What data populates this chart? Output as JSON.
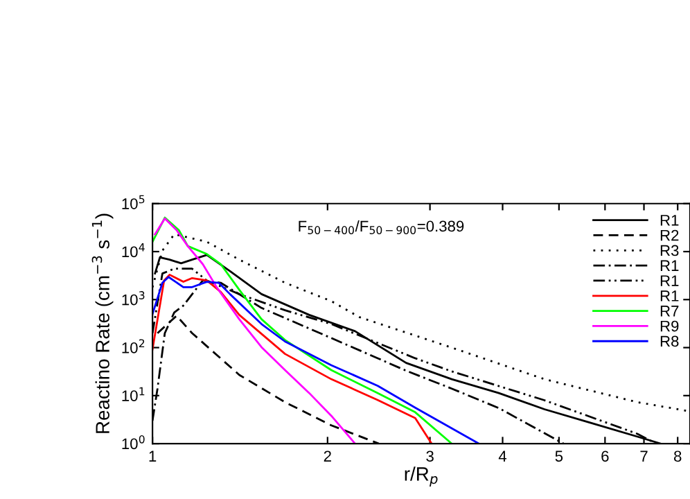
{
  "chart_data": {
    "type": "line",
    "xlabel": "r/R$_{p}$",
    "ylabel": "Reactino Rate (cm$^{−3}$ s$^{−1}$)",
    "annotations": [
      "F$_{50−400}$/F$_{50−900}$=0.389"
    ],
    "log": "xy",
    "xlim": [
      1,
      8.4
    ],
    "ylim": [
      1,
      100000
    ],
    "xticks": [
      1,
      2,
      3,
      4,
      5,
      6,
      7,
      8
    ],
    "yticks": [
      {
        "value": 1,
        "label": "10$^{0}$"
      },
      {
        "value": 10,
        "label": "10$^{1}$"
      },
      {
        "value": 100,
        "label": "10$^{2}$"
      },
      {
        "value": 1000,
        "label": "10$^{3}$"
      },
      {
        "value": 10000,
        "label": "10$^{4}$"
      },
      {
        "value": 100000,
        "label": "10$^{5}$"
      }
    ],
    "legend": "top right",
    "grid": false,
    "series": [
      {
        "name": "R1",
        "color": "#000000",
        "line_style": "solid",
        "x": [
          1.01,
          1.03,
          1.07,
          1.12,
          1.17,
          1.24,
          1.36,
          1.54,
          1.86,
          2.23,
          2.73,
          3.27,
          3.94,
          4.72,
          5.67,
          6.82,
          7.48
        ],
        "values": [
          3500,
          7600,
          6800,
          5700,
          6800,
          8500,
          3900,
          1300,
          480,
          220,
          48,
          22,
          11.3,
          5.2,
          2.7,
          1.4,
          1
        ]
      },
      {
        "name": "R2",
        "color": "#000000",
        "line_style": "dashed",
        "x": [
          1.02,
          1.1,
          1.17,
          1.41,
          1.69,
          2.03,
          2.45
        ],
        "values": [
          200,
          460,
          200,
          27,
          7.3,
          2.4,
          1
        ]
      },
      {
        "name": "R3",
        "color": "#000000",
        "line_style": "dotted",
        "x": [
          1.0,
          1.04,
          1.09,
          1.24,
          1.41,
          1.69,
          2.03,
          2.27,
          3.27,
          4.72,
          6.82,
          8.4
        ],
        "values": [
          1800,
          10500,
          23000,
          16000,
          6800,
          2240,
          930,
          430,
          100,
          22,
          7.3,
          4.7
        ]
      },
      {
        "name": "R1",
        "color": "#000000",
        "line_style": "dashdot",
        "x": [
          1.0,
          1.02,
          1.05,
          1.09,
          1.13,
          1.22,
          1.31,
          1.54,
          1.86,
          2.44,
          2.73,
          3.27,
          3.94,
          5.09
        ],
        "values": [
          3,
          14,
          200,
          540,
          750,
          2500,
          2240,
          670,
          250,
          60,
          33,
          14,
          5.5,
          1
        ]
      },
      {
        "name": "R1",
        "color": "#000000",
        "line_style": "dashdotdot",
        "x": [
          1.0,
          1.04,
          1.09,
          1.17,
          1.24,
          1.41,
          1.69,
          2.03,
          2.83,
          3.27,
          4.72,
          6.82,
          7.35
        ],
        "values": [
          200,
          3500,
          4400,
          4400,
          2500,
          1300,
          600,
          310,
          60,
          32,
          8,
          1.6,
          1
        ]
      },
      {
        "name": "R1",
        "color": "#ff0000",
        "line_style": "solid",
        "x": [
          1.0,
          1.047,
          1.07,
          1.13,
          1.17,
          1.24,
          1.31,
          1.41,
          1.69,
          2.03,
          2.44,
          2.83,
          3.02
        ],
        "values": [
          92,
          2500,
          3300,
          2350,
          2800,
          2500,
          1450,
          480,
          74,
          22,
          8.1,
          3.4,
          1
        ]
      },
      {
        "name": "R7",
        "color": "#00ff00",
        "line_style": "solid",
        "x": [
          1.0,
          1.05,
          1.11,
          1.15,
          1.24,
          1.31,
          1.41,
          1.54,
          1.69,
          2.03,
          2.44,
          2.83,
          3.27
        ],
        "values": [
          16000,
          51000,
          28000,
          13000,
          8900,
          5500,
          1600,
          390,
          144,
          34,
          11.3,
          4.5,
          1
        ]
      },
      {
        "name": "R9",
        "color": "#ff00ff",
        "line_style": "solid",
        "x": [
          1.01,
          1.05,
          1.1,
          1.15,
          1.22,
          1.29,
          1.41,
          1.54,
          1.69,
          1.86,
          2.03,
          2.23
        ],
        "values": [
          23000,
          49000,
          28000,
          13000,
          5500,
          1800,
          390,
          102,
          34,
          11.3,
          3.8,
          1
        ]
      },
      {
        "name": "R8",
        "color": "#0000ff",
        "line_style": "solid",
        "x": [
          1.0,
          1.04,
          1.066,
          1.13,
          1.17,
          1.24,
          1.3,
          1.36,
          1.54,
          1.69,
          2.03,
          2.44,
          2.83,
          3.64
        ],
        "values": [
          500,
          2240,
          2950,
          1820,
          1820,
          2350,
          2240,
          1290,
          310,
          134,
          43,
          16,
          5.6,
          1
        ]
      }
    ]
  }
}
